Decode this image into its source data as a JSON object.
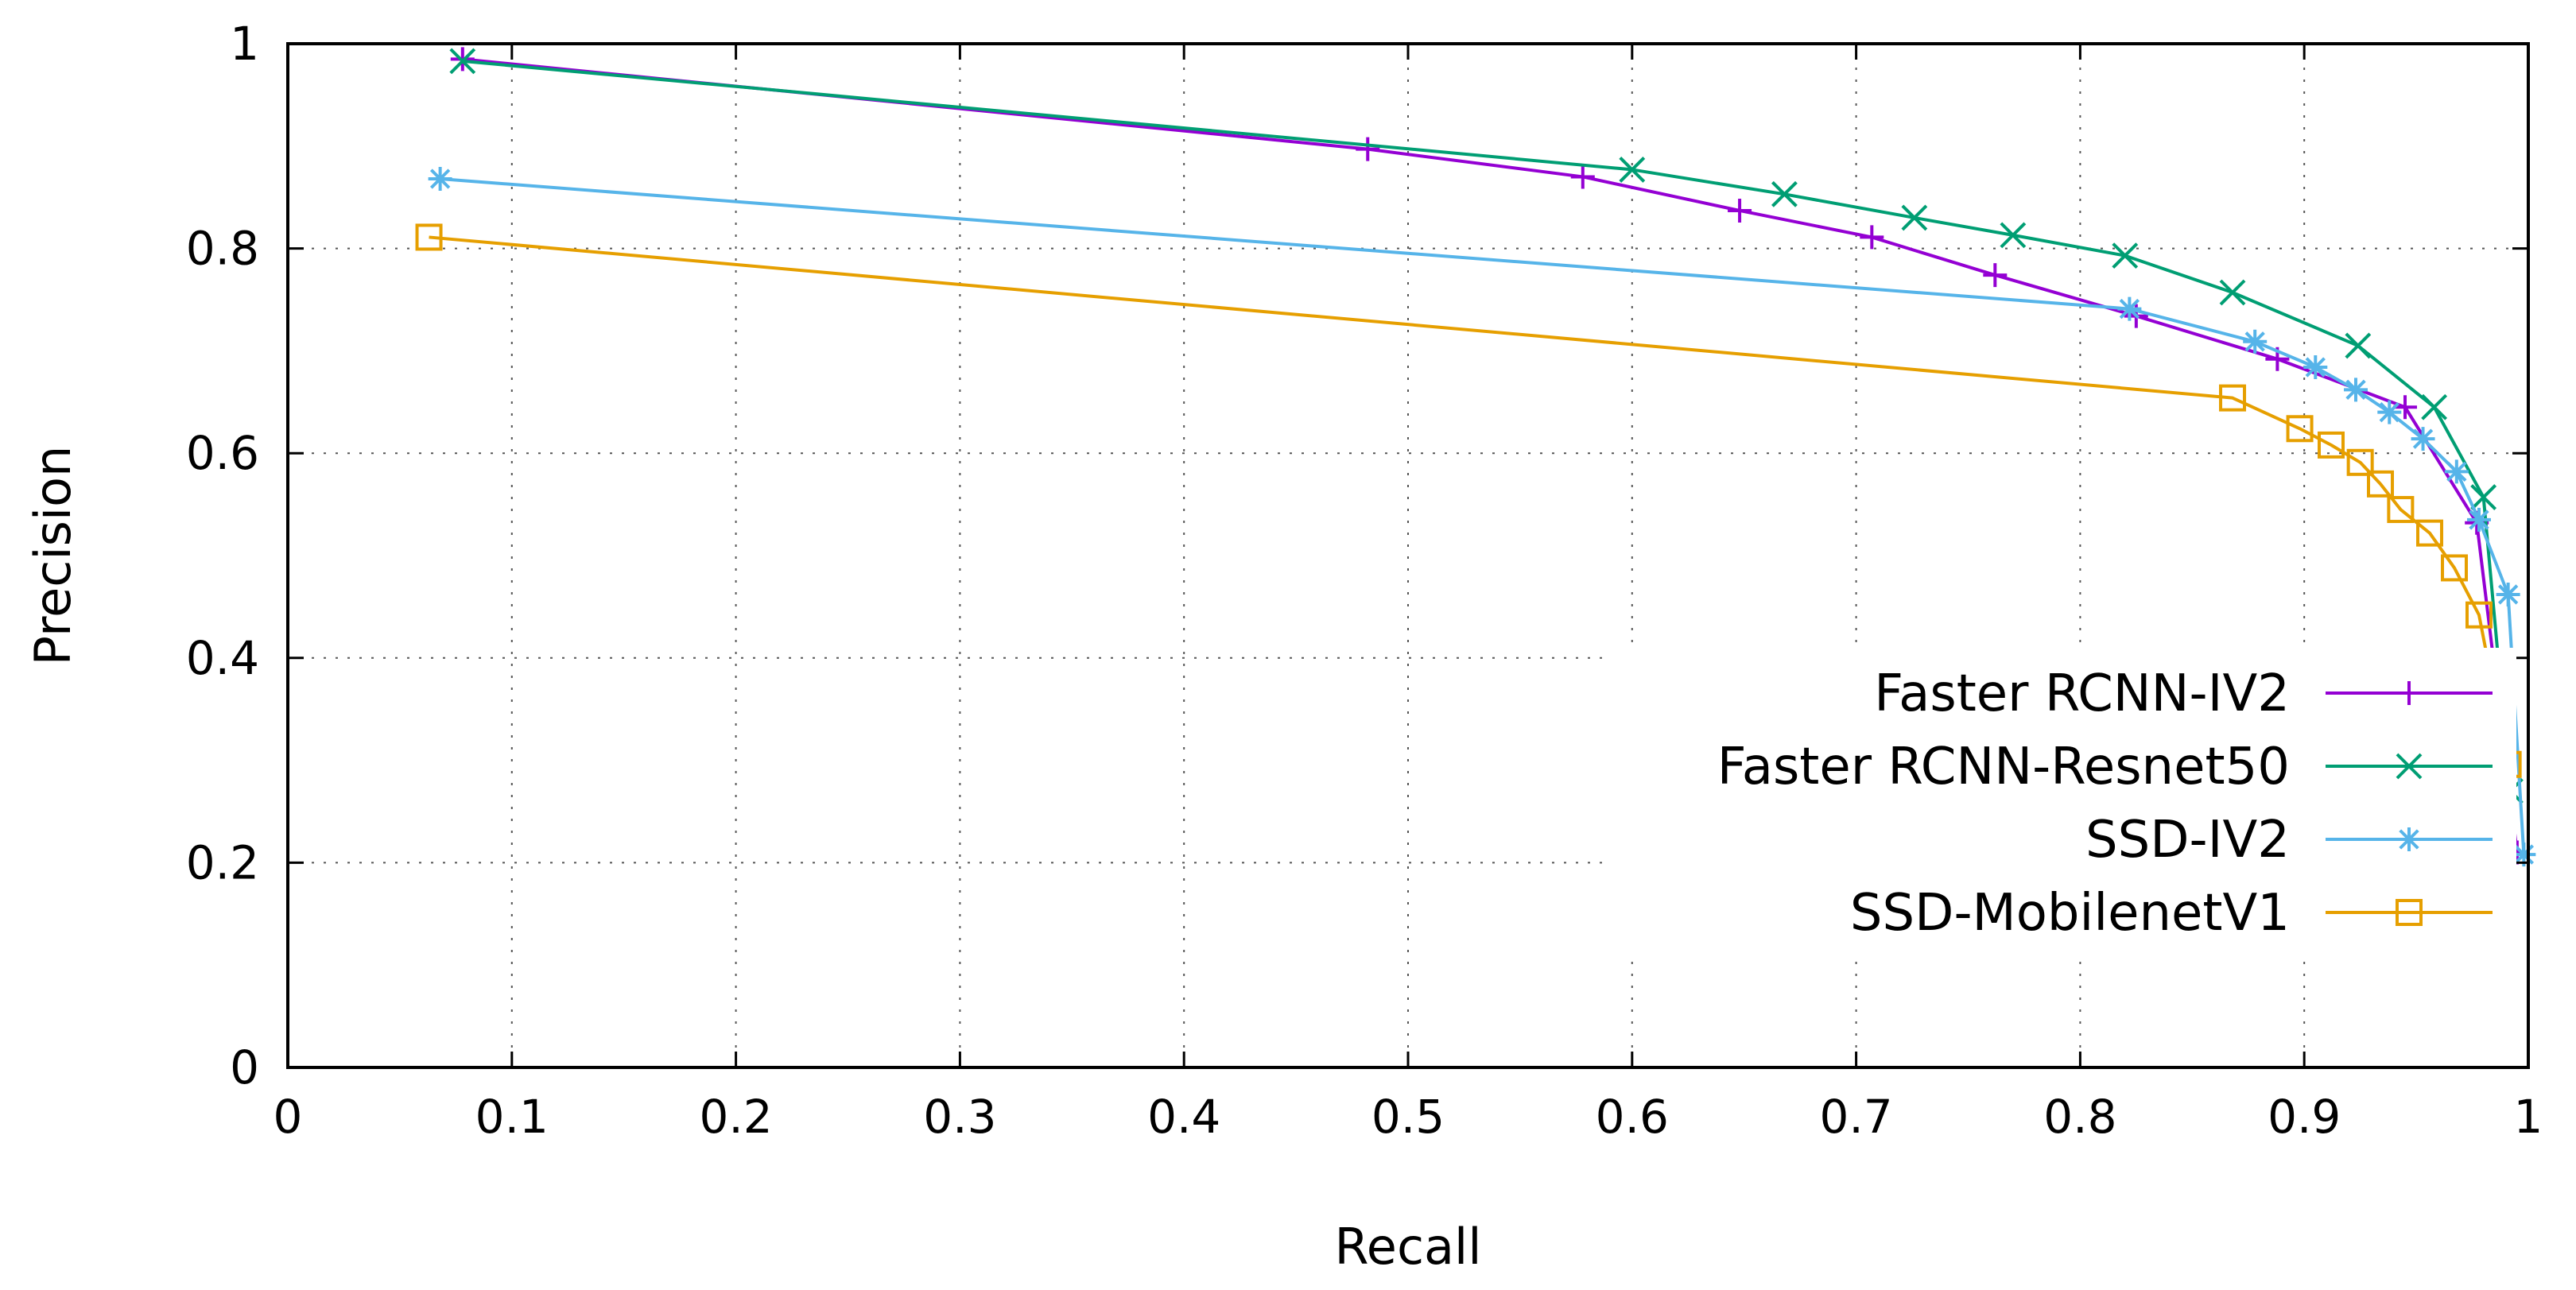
{
  "chart_data": {
    "type": "line",
    "title": "",
    "xlabel": "Recall",
    "ylabel": "Precision",
    "xlim": [
      0,
      1
    ],
    "ylim": [
      0,
      1
    ],
    "xticks": [
      0,
      0.1,
      0.2,
      0.3,
      0.4,
      0.5,
      0.6,
      0.7,
      0.8,
      0.9,
      1
    ],
    "yticks": [
      0,
      0.2,
      0.4,
      0.6,
      0.8,
      1
    ],
    "xtick_labels": [
      "0",
      "0.1",
      "0.2",
      "0.3",
      "0.4",
      "0.5",
      "0.6",
      "0.7",
      "0.8",
      "0.9",
      "1"
    ],
    "ytick_labels": [
      "0",
      "0.2",
      "0.4",
      "0.6",
      "0.8",
      "1"
    ],
    "grid": true,
    "legend_position": "bottom-right",
    "series": [
      {
        "name": "Faster RCNN-IV2",
        "color": "#9400d3",
        "marker": "plus",
        "x": [
          0.078,
          0.482,
          0.578,
          0.648,
          0.707,
          0.762,
          0.825,
          0.888,
          0.945,
          0.977,
          0.995
        ],
        "y": [
          0.985,
          0.897,
          0.87,
          0.837,
          0.811,
          0.774,
          0.734,
          0.692,
          0.645,
          0.532,
          0.21
        ]
      },
      {
        "name": "Faster RCNN-Resnet50",
        "color": "#009e73",
        "marker": "cross",
        "x": [
          0.078,
          0.6,
          0.668,
          0.726,
          0.77,
          0.82,
          0.868,
          0.924,
          0.958,
          0.98,
          0.992
        ],
        "y": [
          0.983,
          0.877,
          0.853,
          0.83,
          0.813,
          0.793,
          0.757,
          0.705,
          0.645,
          0.557,
          0.27
        ]
      },
      {
        "name": "SSD-IV2",
        "color": "#56b4e9",
        "marker": "star",
        "x": [
          0.068,
          0.822,
          0.878,
          0.905,
          0.923,
          0.938,
          0.953,
          0.968,
          0.978,
          0.991,
          0.998
        ],
        "y": [
          0.868,
          0.741,
          0.709,
          0.684,
          0.662,
          0.64,
          0.614,
          0.582,
          0.535,
          0.462,
          0.208
        ]
      },
      {
        "name": "SSD-MobilenetV1",
        "color": "#e69f00",
        "marker": "square",
        "x": [
          0.063,
          0.868,
          0.898,
          0.912,
          0.925,
          0.934,
          0.943,
          0.956,
          0.967,
          0.978,
          0.991
        ],
        "y": [
          0.811,
          0.654,
          0.624,
          0.608,
          0.591,
          0.57,
          0.545,
          0.522,
          0.488,
          0.442,
          0.296
        ]
      }
    ]
  }
}
